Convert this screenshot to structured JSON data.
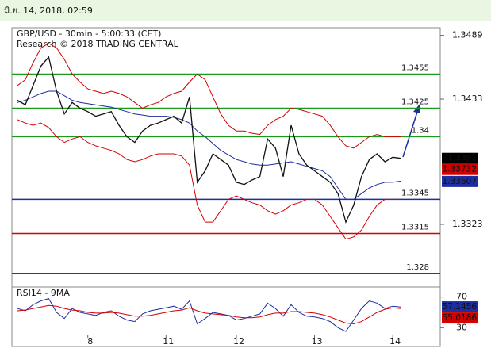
{
  "header": {
    "timestamp": "มิ.ย. 14, 2018, 02:59"
  },
  "chart_data": [
    {
      "type": "line",
      "title": "GBP/USD - 30min - 5:00:33 (CET)",
      "subtitle": "Research © 2018 TRADING CENTRAL",
      "categories": [
        null,
        null,
        null,
        null,
        null,
        null,
        null,
        null,
        null,
        "8",
        null,
        null,
        null,
        null,
        null,
        null,
        null,
        null,
        null,
        "11",
        null,
        null,
        null,
        null,
        null,
        null,
        null,
        null,
        "12",
        null,
        null,
        null,
        null,
        null,
        null,
        null,
        null,
        null,
        "13",
        null,
        null,
        null,
        null,
        null,
        null,
        null,
        null,
        null,
        "14",
        null
      ],
      "series": [
        {
          "color": "#d40000",
          "values": [
            1.3445,
            1.345,
            1.3465,
            1.3478,
            1.3482,
            1.3478,
            1.3468,
            1.3455,
            1.3448,
            1.3442,
            1.344,
            1.3438,
            1.344,
            1.3438,
            1.3435,
            1.343,
            1.3425,
            1.3428,
            1.343,
            1.3435,
            1.3438,
            1.344,
            1.3448,
            1.3455,
            1.345,
            1.3435,
            1.342,
            1.341,
            1.3405,
            1.3405,
            1.3403,
            1.3402,
            1.341,
            1.3415,
            1.3418,
            1.3425,
            1.3424,
            1.3422,
            1.342,
            1.3418,
            1.341,
            1.34,
            1.3392,
            1.339,
            1.3395,
            1.34,
            1.3402,
            1.34,
            1.34,
            1.34
          ]
        },
        {
          "color": "#d40000",
          "values": [
            1.3415,
            1.3412,
            1.341,
            1.3412,
            1.3408,
            1.34,
            1.3395,
            1.3398,
            1.34,
            1.3395,
            1.3392,
            1.339,
            1.3388,
            1.3385,
            1.338,
            1.3378,
            1.338,
            1.3383,
            1.3385,
            1.3385,
            1.3385,
            1.3383,
            1.3375,
            1.334,
            1.3325,
            1.3325,
            1.3335,
            1.3345,
            1.3348,
            1.3345,
            1.3342,
            1.334,
            1.3335,
            1.3332,
            1.3335,
            1.334,
            1.3342,
            1.3345,
            1.3345,
            1.334,
            1.333,
            1.332,
            1.331,
            1.3312,
            1.3318,
            1.333,
            1.334,
            1.3345,
            1.3345,
            1.3345
          ]
        },
        {
          "color": "#1c2ea0",
          "values": [
            1.343,
            1.3432,
            1.3435,
            1.3438,
            1.344,
            1.344,
            1.3436,
            1.3432,
            1.343,
            1.3429,
            1.3428,
            1.3427,
            1.3426,
            1.3424,
            1.3422,
            1.342,
            1.3419,
            1.3418,
            1.3418,
            1.3418,
            1.3417,
            1.3415,
            1.3412,
            1.3405,
            1.34,
            1.3394,
            1.3388,
            1.3384,
            1.338,
            1.3378,
            1.3376,
            1.3375,
            1.3375,
            1.3376,
            1.3377,
            1.3378,
            1.3376,
            1.3374,
            1.3372,
            1.337,
            1.3365,
            1.3355,
            1.3345,
            1.3345,
            1.335,
            1.3355,
            1.3358,
            1.336,
            1.336,
            1.3361
          ]
        },
        {
          "color": "#111111",
          "values": [
            1.3432,
            1.3428,
            1.3445,
            1.3462,
            1.347,
            1.344,
            1.342,
            1.343,
            1.3425,
            1.3422,
            1.3418,
            1.342,
            1.3422,
            1.341,
            1.34,
            1.3395,
            1.3405,
            1.341,
            1.3412,
            1.3415,
            1.3418,
            1.3412,
            1.3435,
            1.336,
            1.337,
            1.3385,
            1.338,
            1.3375,
            1.336,
            1.3358,
            1.3362,
            1.3365,
            1.3398,
            1.339,
            1.3365,
            1.341,
            1.3385,
            1.3375,
            1.337,
            1.3365,
            1.336,
            1.335,
            1.3325,
            1.334,
            1.3365,
            1.338,
            1.3385,
            1.3378,
            1.3382,
            1.3381
          ]
        }
      ],
      "ylim": [
        1.3268,
        1.3495
      ],
      "yticks": [
        1.3323,
        1.3433,
        1.3489
      ],
      "levels": [
        {
          "value": 1.3455,
          "color": "#1a9a1a"
        },
        {
          "value": 1.3425,
          "color": "#1a9a1a"
        },
        {
          "value": 1.34,
          "color": "#1a9a1a"
        },
        {
          "value": 1.3345,
          "color": "#1c2ea0"
        },
        {
          "value": 1.3315,
          "color": "#d40000"
        },
        {
          "value": 1.328,
          "color": "#d40000"
        }
      ],
      "price_labels": [
        {
          "value": 1.3381,
          "color": "#000000"
        },
        {
          "value": 1.33732,
          "color": "#d40000"
        },
        {
          "value": 1.33607,
          "color": "#1c2ea0"
        }
      ]
    },
    {
      "type": "line",
      "title": "RSI14 - 9MA",
      "series": [
        {
          "color": "#1c2ea0",
          "values": [
            55,
            52,
            60,
            65,
            68,
            50,
            42,
            55,
            50,
            48,
            46,
            50,
            52,
            45,
            40,
            38,
            48,
            52,
            54,
            56,
            58,
            54,
            65,
            35,
            42,
            50,
            48,
            46,
            40,
            42,
            45,
            48,
            62,
            55,
            45,
            60,
            50,
            45,
            44,
            42,
            38,
            30,
            25,
            40,
            55,
            65,
            62,
            55,
            58,
            57
          ]
        },
        {
          "color": "#d40000",
          "values": [
            52,
            53,
            55,
            57,
            59,
            58,
            55,
            53,
            52,
            50,
            49,
            49,
            50,
            49,
            47,
            45,
            45,
            46,
            48,
            50,
            52,
            53,
            56,
            52,
            49,
            48,
            47,
            46,
            44,
            43,
            43,
            44,
            47,
            49,
            49,
            51,
            51,
            50,
            49,
            47,
            44,
            40,
            36,
            35,
            38,
            44,
            50,
            54,
            56,
            55
          ]
        }
      ],
      "ylim": [
        21,
        81
      ],
      "yticks": [
        30,
        70
      ],
      "price_labels": [
        {
          "value": 57.1456,
          "color": "#1c2ea0"
        },
        {
          "value": 55.0186,
          "color": "#d40000"
        }
      ]
    }
  ]
}
